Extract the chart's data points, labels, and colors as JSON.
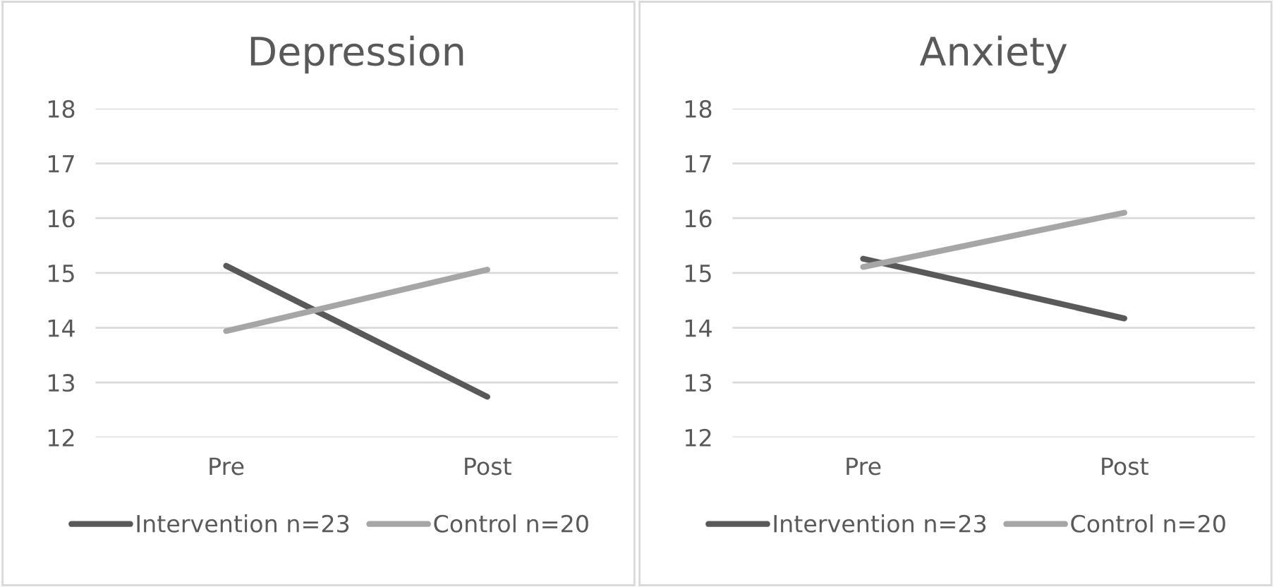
{
  "chart_data": [
    {
      "type": "line",
      "title": "Depression",
      "categories": [
        "Pre",
        "Post"
      ],
      "ylim": [
        12,
        18
      ],
      "yticks": [
        12,
        13,
        14,
        15,
        16,
        17,
        18
      ],
      "grid": "y",
      "legend": "bottom",
      "series": [
        {
          "name": "Intervention n=23",
          "color": "#595959",
          "values": [
            15.13,
            12.74
          ]
        },
        {
          "name": "Control n=20",
          "color": "#a6a6a6",
          "values": [
            13.94,
            15.06
          ]
        }
      ]
    },
    {
      "type": "line",
      "title": "Anxiety",
      "categories": [
        "Pre",
        "Post"
      ],
      "ylim": [
        12,
        18
      ],
      "yticks": [
        12,
        13,
        14,
        15,
        16,
        17,
        18
      ],
      "grid": "y",
      "legend": "bottom",
      "series": [
        {
          "name": "Intervention n=23",
          "color": "#595959",
          "values": [
            15.26,
            14.17
          ]
        },
        {
          "name": "Control n=20",
          "color": "#a6a6a6",
          "values": [
            15.11,
            16.1
          ]
        }
      ]
    }
  ]
}
